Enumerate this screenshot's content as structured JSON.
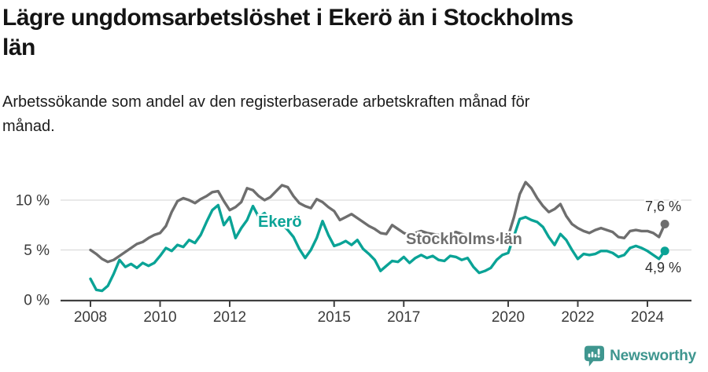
{
  "header": {
    "title_line1": "Lägre ungdomsarbetslöshet i Ekerö än i Stockholms",
    "title_line2": "län",
    "subtitle_line1": "Arbetssökande som andel av den registerbaserade arbetskraften månad för",
    "subtitle_line2": "månad."
  },
  "footer": {
    "brand": "Newsworthy",
    "logo_icon": "speech-bubble-bar-chart-icon",
    "brand_color": "#3f968f"
  },
  "chart_data": {
    "type": "line",
    "title": "Lägre ungdomsarbetslöshet i Ekerö än i Stockholms län",
    "subtitle": "Arbetssökande som andel av den registerbaserade arbetskraften månad för månad.",
    "x_start_year": 2008.0,
    "x_step_months": 2,
    "x_end_year": 2024.5,
    "x_axis": {
      "tick_years": [
        2008,
        2010,
        2012,
        2015,
        2017,
        2020,
        2022,
        2024
      ],
      "tick_labels": [
        "2008",
        "2010",
        "2012",
        "2015",
        "2017",
        "2020",
        "2022",
        "2024"
      ],
      "range": [
        2007.1,
        2025.3
      ]
    },
    "y_axis": {
      "ticks": [
        {
          "value": 0,
          "label": "0 %"
        },
        {
          "value": 5,
          "label": "5 %"
        },
        {
          "value": 10,
          "label": "10 %"
        }
      ],
      "range": [
        0,
        13.5
      ],
      "unit": "%"
    },
    "grid": "horizontal",
    "legend": "inline-labels",
    "colors": {
      "ekero": "#0aa396",
      "stockholms_lan": "#6e6e6e",
      "gridline": "#dcdcdc",
      "axis": "#3f3f3f",
      "tick_text": "#3b3b3b",
      "end_label_text": "#2e2e2e"
    },
    "series": [
      {
        "name": "Stockholms län",
        "color": "#6e6e6e",
        "end_label": "7,6 %",
        "end_value": 7.6,
        "values": [
          5.0,
          4.6,
          4.1,
          3.8,
          4.0,
          4.4,
          4.8,
          5.2,
          5.6,
          5.8,
          6.2,
          6.5,
          6.7,
          7.4,
          8.8,
          9.9,
          10.2,
          10.0,
          9.7,
          10.1,
          10.4,
          10.8,
          10.9,
          9.9,
          9.0,
          9.3,
          9.8,
          11.2,
          11.0,
          10.4,
          10.0,
          10.3,
          10.9,
          11.5,
          11.3,
          10.4,
          9.7,
          9.4,
          9.2,
          10.1,
          9.8,
          9.3,
          8.9,
          8.0,
          8.3,
          8.6,
          8.2,
          7.8,
          7.4,
          7.1,
          6.7,
          6.6,
          7.5,
          7.1,
          6.7,
          6.5,
          6.7,
          6.9,
          6.7,
          6.6,
          6.5,
          6.4,
          6.6,
          6.8,
          6.6,
          6.4,
          6.2,
          6.4,
          6.2,
          6.1,
          6.0,
          6.3,
          6.4,
          8.3,
          10.6,
          11.8,
          11.2,
          10.2,
          9.4,
          8.8,
          9.1,
          9.6,
          8.4,
          7.6,
          7.2,
          6.9,
          6.7,
          7.0,
          7.2,
          7.0,
          6.8,
          6.3,
          6.2,
          6.9,
          7.0,
          6.9,
          6.9,
          6.7,
          6.3,
          7.6
        ]
      },
      {
        "name": "Ekerö",
        "color": "#0aa396",
        "end_label": "4,9 %",
        "end_value": 4.9,
        "values": [
          2.1,
          1.0,
          0.9,
          1.4,
          2.6,
          4.0,
          3.3,
          3.6,
          3.2,
          3.7,
          3.4,
          3.7,
          4.4,
          5.2,
          4.9,
          5.5,
          5.3,
          6.0,
          5.7,
          6.5,
          7.8,
          9.0,
          9.5,
          7.5,
          8.3,
          6.2,
          7.2,
          8.0,
          9.4,
          8.3,
          8.7,
          7.8,
          8.2,
          7.6,
          7.0,
          6.3,
          5.1,
          4.2,
          5.0,
          6.2,
          7.9,
          6.5,
          5.4,
          5.6,
          5.9,
          5.5,
          6.0,
          5.1,
          4.6,
          4.0,
          2.9,
          3.4,
          3.9,
          3.8,
          4.3,
          3.7,
          4.2,
          4.5,
          4.2,
          4.4,
          4.0,
          3.9,
          4.4,
          4.3,
          4.0,
          4.2,
          3.3,
          2.7,
          2.9,
          3.2,
          4.0,
          4.5,
          4.7,
          6.4,
          8.1,
          8.3,
          8.0,
          7.8,
          7.3,
          6.3,
          5.5,
          6.6,
          6.0,
          5.0,
          4.1,
          4.6,
          4.5,
          4.6,
          4.9,
          4.9,
          4.7,
          4.3,
          4.5,
          5.2,
          5.4,
          5.2,
          4.9,
          4.5,
          4.1,
          4.9
        ]
      }
    ]
  }
}
